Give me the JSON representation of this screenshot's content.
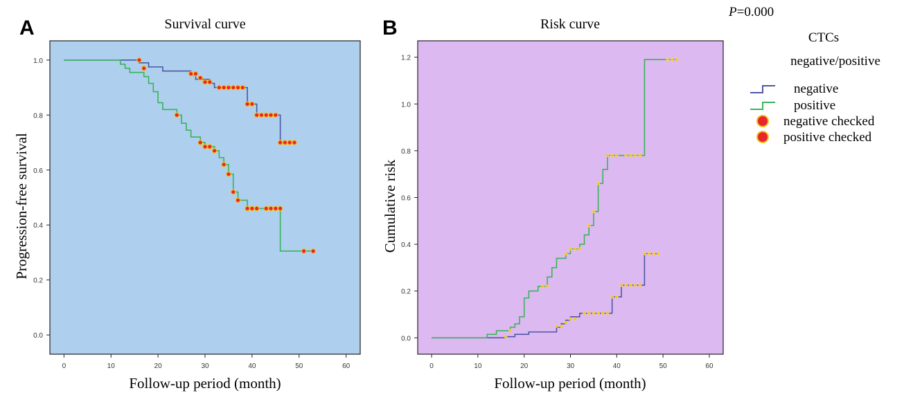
{
  "p_value": "=0.000",
  "p_letter": "P",
  "legend": {
    "title_line1": "CTCs",
    "title_line2": "negative/positive",
    "items": [
      {
        "label": "negative",
        "kind": "step",
        "color": "#4b57a3"
      },
      {
        "label": "positive",
        "kind": "step",
        "color": "#39b35a"
      },
      {
        "label": "negative checked",
        "kind": "dot",
        "color": "#e8262b",
        "ring": "#f2c21b"
      },
      {
        "label": "positive checked",
        "kind": "dot",
        "color": "#e8262b",
        "ring": "#f2c21b"
      }
    ]
  },
  "colors": {
    "negative": "#4b57a3",
    "positive": "#39b35a",
    "censor_fill": "#e8262b",
    "censor_ring": "#f2c21b",
    "panelA_bg": "#aecfee",
    "panelB_bg": "#ddb9f2"
  },
  "chart_data": [
    {
      "panel": "A",
      "type": "line",
      "title": "Survival curve",
      "xlabel": "Follow-up period (month)",
      "ylabel": "Progression-free survival",
      "xlim": [
        -3,
        63
      ],
      "ylim": [
        -0.07,
        1.07
      ],
      "xticks": [
        0,
        10,
        20,
        30,
        40,
        50,
        60
      ],
      "yticks": [
        0.0,
        0.2,
        0.4,
        0.6,
        0.8,
        1.0
      ],
      "ytick_labels": [
        "0.0",
        "0.2",
        "0.4",
        "0.6",
        "0.8",
        "1.0"
      ],
      "series": [
        {
          "name": "negative",
          "step_x": [
            0,
            16,
            18,
            21,
            27,
            28,
            31,
            32,
            33,
            39,
            41,
            46,
            49
          ],
          "step_y": [
            1.0,
            0.99,
            0.975,
            0.96,
            0.945,
            0.93,
            0.915,
            0.9,
            0.9,
            0.84,
            0.8,
            0.7,
            0.7
          ],
          "censored_x": [
            16,
            27,
            28,
            29,
            30,
            31,
            33,
            34,
            35,
            36,
            37,
            38,
            39,
            40,
            41,
            42,
            43,
            44,
            45,
            46,
            47,
            48,
            49
          ],
          "censored_y": [
            1.0,
            0.95,
            0.95,
            0.935,
            0.92,
            0.92,
            0.9,
            0.9,
            0.9,
            0.9,
            0.9,
            0.9,
            0.84,
            0.84,
            0.8,
            0.8,
            0.8,
            0.8,
            0.8,
            0.7,
            0.7,
            0.7,
            0.7
          ]
        },
        {
          "name": "positive",
          "step_x": [
            0,
            12,
            13,
            14,
            17,
            18,
            19,
            20,
            21,
            23,
            24,
            25,
            26,
            27,
            29,
            30,
            32,
            33,
            34,
            35,
            36,
            37,
            39,
            41,
            46,
            53
          ],
          "step_y": [
            1.0,
            0.985,
            0.97,
            0.955,
            0.94,
            0.915,
            0.885,
            0.845,
            0.82,
            0.82,
            0.8,
            0.77,
            0.745,
            0.72,
            0.7,
            0.685,
            0.67,
            0.645,
            0.62,
            0.585,
            0.52,
            0.49,
            0.46,
            0.46,
            0.305,
            0.305
          ],
          "censored_x": [
            17,
            24,
            29,
            30,
            31,
            32,
            34,
            35,
            36,
            37,
            39,
            40,
            41,
            43,
            44,
            45,
            46,
            51,
            53
          ],
          "censored_y": [
            0.97,
            0.8,
            0.7,
            0.685,
            0.685,
            0.67,
            0.62,
            0.585,
            0.52,
            0.49,
            0.46,
            0.46,
            0.46,
            0.46,
            0.46,
            0.46,
            0.46,
            0.305,
            0.305
          ]
        }
      ]
    },
    {
      "panel": "B",
      "type": "line",
      "title": "Risk curve",
      "xlabel": "Follow-up period (month)",
      "ylabel": "Cumulative risk",
      "xlim": [
        -3,
        63
      ],
      "ylim": [
        -0.07,
        1.27
      ],
      "xticks": [
        0,
        10,
        20,
        30,
        40,
        50,
        60
      ],
      "yticks": [
        0.0,
        0.2,
        0.4,
        0.6,
        0.8,
        1.0,
        1.2
      ],
      "ytick_labels": [
        "0.0",
        "0.2",
        "0.4",
        "0.6",
        "0.8",
        "1.0",
        "1.2"
      ],
      "series": [
        {
          "name": "negative",
          "step_x": [
            0,
            16,
            18,
            21,
            27,
            28,
            29,
            30,
            32,
            33,
            39,
            41,
            46,
            49
          ],
          "step_y": [
            0.0,
            0.005,
            0.015,
            0.025,
            0.045,
            0.06,
            0.075,
            0.09,
            0.105,
            0.105,
            0.175,
            0.225,
            0.36,
            0.36
          ],
          "censored_x": [
            16,
            27,
            28,
            29,
            30,
            31,
            33,
            34,
            35,
            36,
            37,
            38,
            39,
            40,
            41,
            42,
            43,
            44,
            45,
            46,
            47,
            48,
            49
          ],
          "censored_y": [
            0.005,
            0.05,
            0.05,
            0.065,
            0.08,
            0.08,
            0.105,
            0.105,
            0.105,
            0.105,
            0.105,
            0.105,
            0.175,
            0.175,
            0.225,
            0.225,
            0.225,
            0.225,
            0.225,
            0.36,
            0.36,
            0.36,
            0.36
          ]
        },
        {
          "name": "positive",
          "step_x": [
            0,
            12,
            14,
            17,
            18,
            19,
            20,
            21,
            23,
            24,
            25,
            26,
            27,
            29,
            30,
            32,
            33,
            34,
            35,
            36,
            37,
            38,
            41,
            46,
            53
          ],
          "step_y": [
            0.0,
            0.015,
            0.03,
            0.045,
            0.06,
            0.09,
            0.17,
            0.2,
            0.22,
            0.22,
            0.26,
            0.3,
            0.34,
            0.36,
            0.38,
            0.4,
            0.44,
            0.48,
            0.54,
            0.66,
            0.72,
            0.78,
            0.78,
            1.19,
            1.19
          ],
          "censored_x": [
            17,
            24,
            25,
            29,
            30,
            31,
            32,
            34,
            35,
            36,
            38,
            39,
            40,
            42,
            43,
            44,
            45,
            51,
            52,
            53
          ],
          "censored_y": [
            0.03,
            0.22,
            0.22,
            0.36,
            0.38,
            0.38,
            0.38,
            0.48,
            0.54,
            0.66,
            0.78,
            0.78,
            0.78,
            0.78,
            0.78,
            0.78,
            0.78,
            1.19,
            1.19,
            1.19
          ]
        }
      ]
    }
  ]
}
